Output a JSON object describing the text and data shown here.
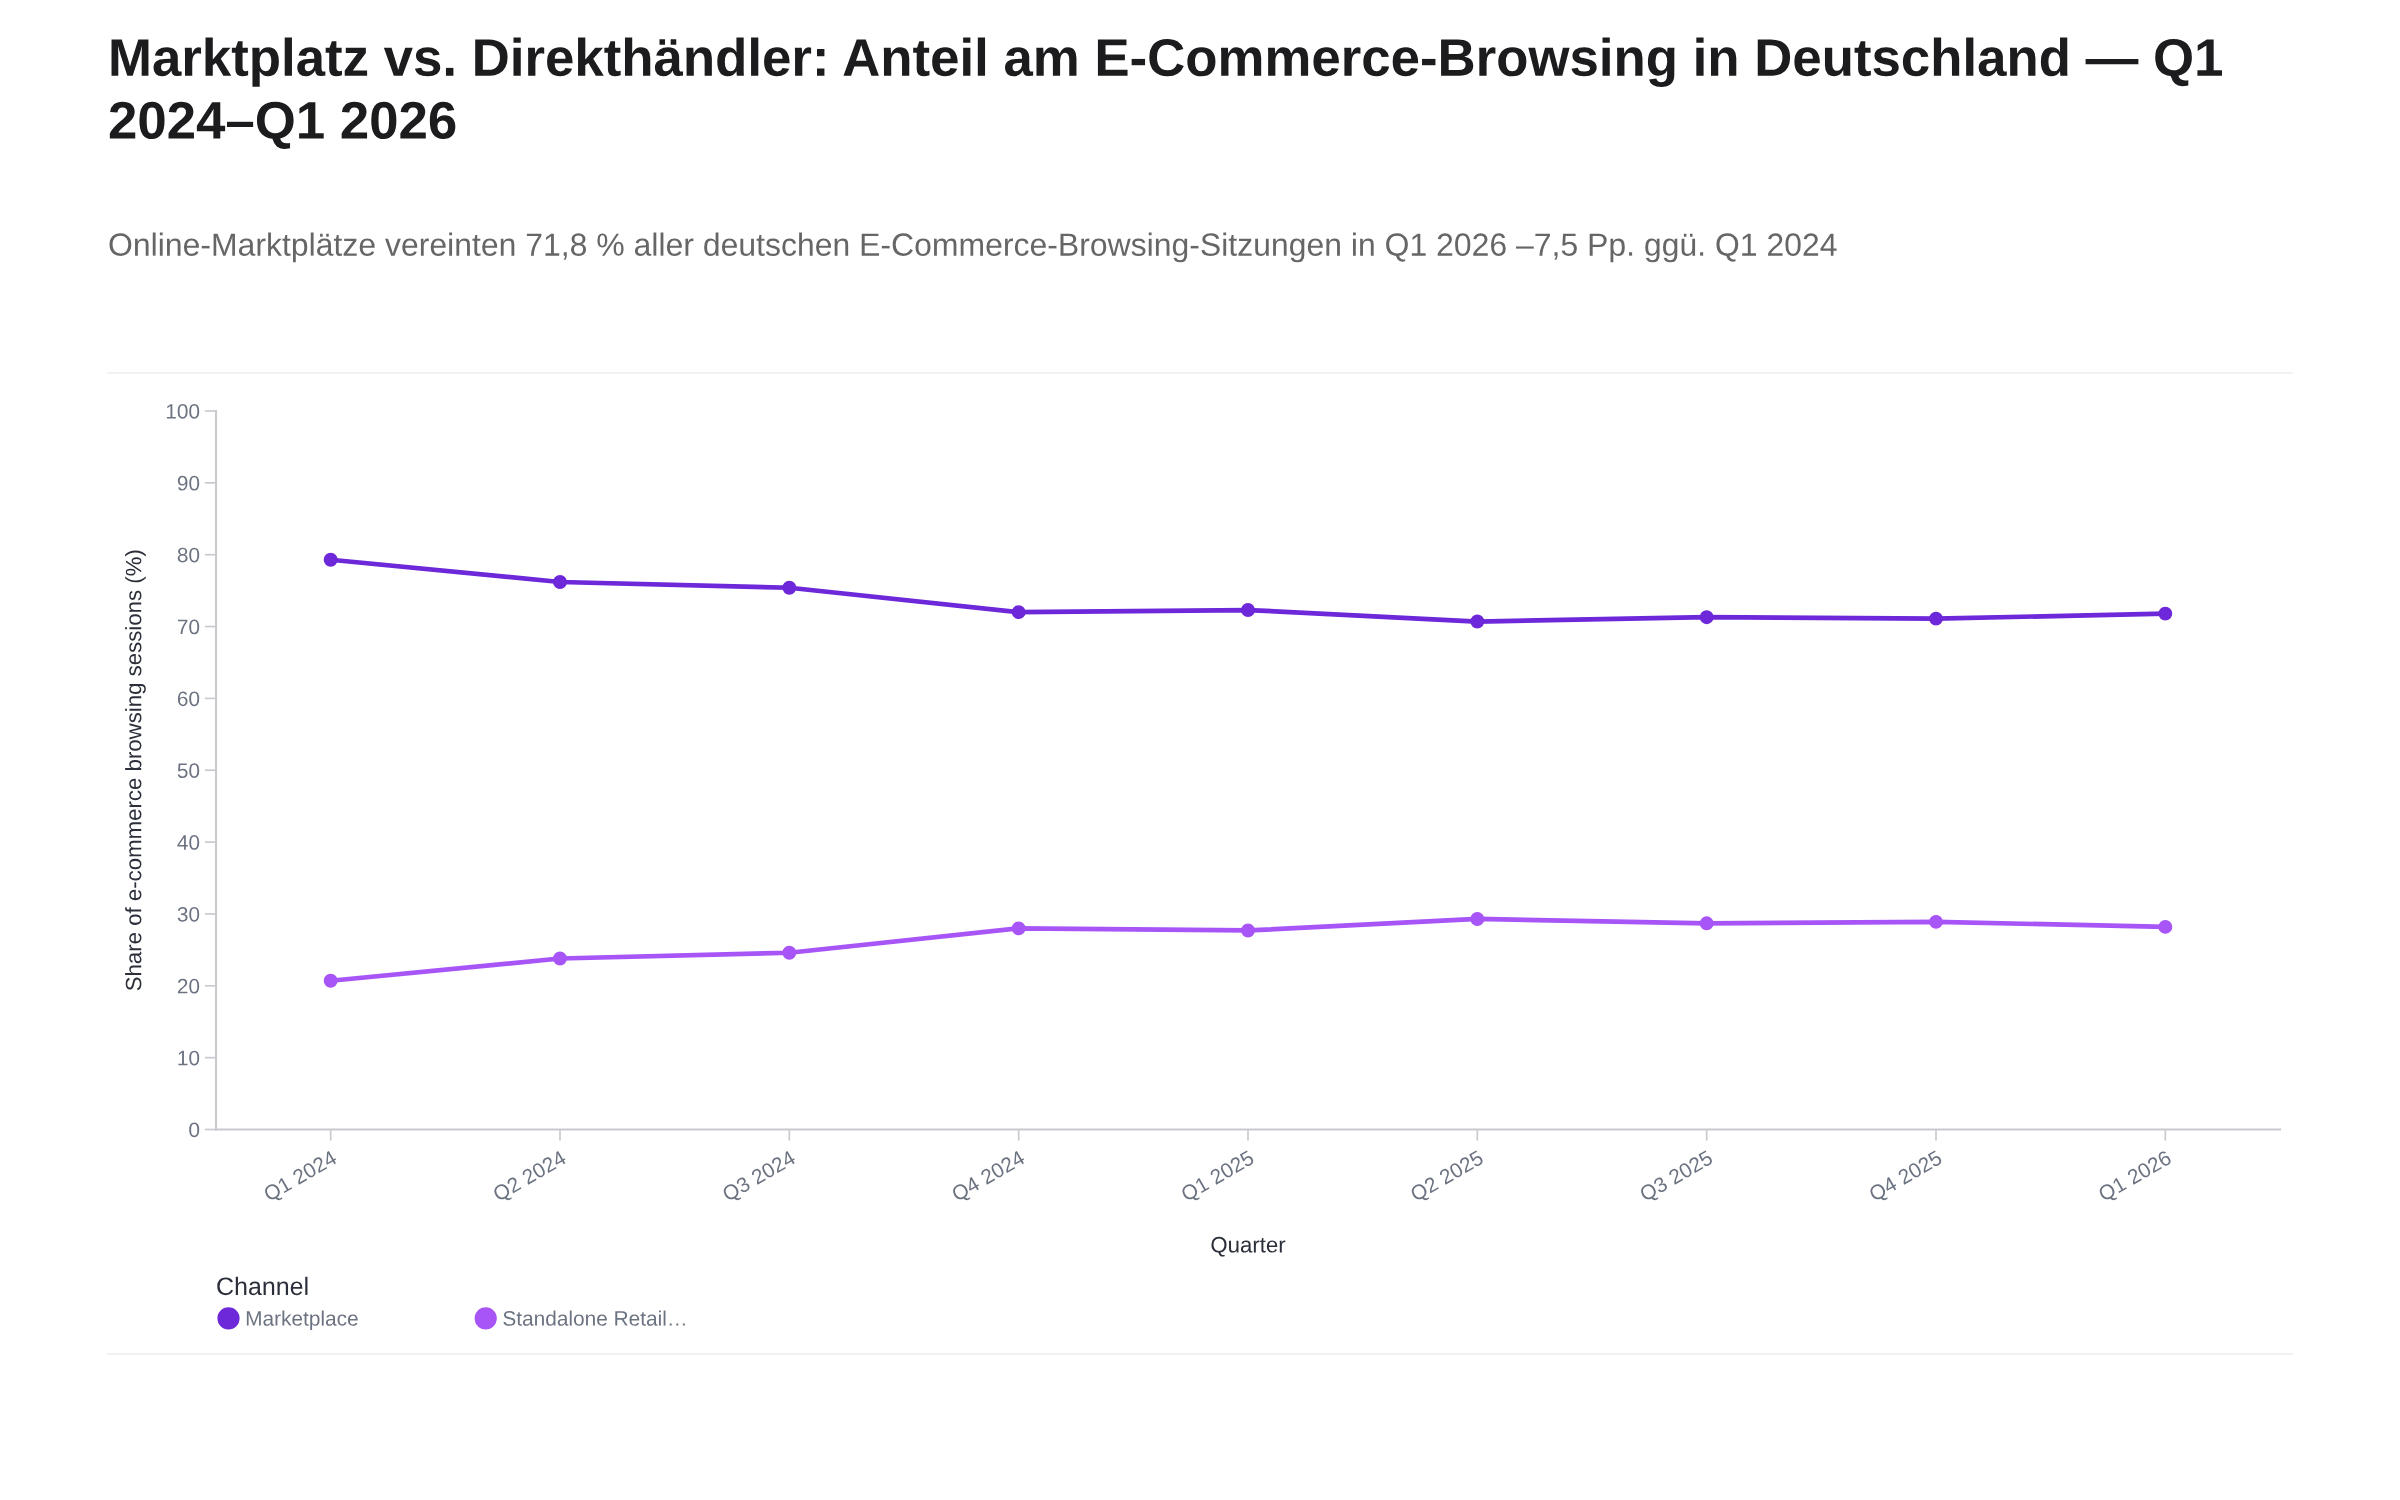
{
  "chart_data": {
    "type": "line",
    "title": "Marktplatz vs. Direkthändler: Anteil am E-Commerce-Browsing in Deutschland — Q1 2024–Q1 2026",
    "subtitle": "Online-Marktplätze vereinten 71,8 % aller deutschen E-Commerce-Browsing-Sitzungen in Q1 2026 –7,5 Pp. ggü. Q1 2024",
    "xlabel": "Quarter",
    "ylabel": "Share of e-commerce browsing sessions (%)",
    "legend_title": "Channel",
    "categories": [
      "Q1 2024",
      "Q2 2024",
      "Q3 2024",
      "Q4 2024",
      "Q1 2025",
      "Q2 2025",
      "Q3 2025",
      "Q4 2025",
      "Q1 2026"
    ],
    "series": [
      {
        "name": "Marketplace",
        "color": "#6d28d9",
        "values": [
          79.3,
          76.2,
          75.4,
          72.0,
          72.3,
          70.7,
          71.3,
          71.1,
          71.8
        ]
      },
      {
        "name": "Standalone Retail…",
        "color": "#a855f7",
        "values": [
          20.7,
          23.8,
          24.6,
          28.0,
          27.7,
          29.3,
          28.7,
          28.9,
          28.2
        ]
      }
    ],
    "ylim": [
      0,
      100
    ],
    "yticks": [
      0,
      10,
      20,
      30,
      40,
      50,
      60,
      70,
      80,
      90,
      100
    ],
    "grid": false,
    "legend": "bottom left",
    "marker": "circle",
    "line_style": "solid"
  }
}
